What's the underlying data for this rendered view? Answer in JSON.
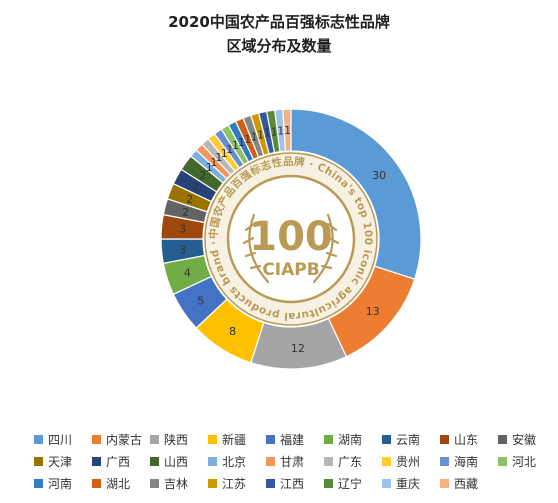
{
  "chart_data": {
    "type": "pie",
    "title_line1": "2020中国农产品百强标志性品牌",
    "title_line2": "区域分布及数量",
    "categories": [
      "四川",
      "内蒙古",
      "陕西",
      "新疆",
      "福建",
      "湖南",
      "云南",
      "山东",
      "安徽",
      "天津",
      "广西",
      "山西",
      "北京",
      "甘肃",
      "广东",
      "贵州",
      "海南",
      "河北",
      "河南",
      "湖北",
      "吉林",
      "江苏",
      "江西",
      "辽宁",
      "重庆",
      "西藏"
    ],
    "values": [
      30,
      13,
      12,
      8,
      5,
      4,
      3,
      3,
      2,
      2,
      2,
      2,
      1,
      1,
      1,
      1,
      1,
      1,
      1,
      1,
      1,
      1,
      1,
      1,
      1,
      1
    ],
    "colors": [
      "#5b9bd5",
      "#ed7d31",
      "#a5a5a5",
      "#ffc000",
      "#4472c4",
      "#70ad47",
      "#255e91",
      "#9e480e",
      "#636363",
      "#997300",
      "#264478",
      "#43682b",
      "#7cafdd",
      "#f1975a",
      "#b7b7b7",
      "#ffcd33",
      "#698ed0",
      "#8cc168",
      "#327dc2",
      "#d26012",
      "#848484",
      "#cc9a00",
      "#335aa1",
      "#5a8a39",
      "#9dc3e6",
      "#f4b183"
    ],
    "legend_position": "bottom"
  },
  "badge": {
    "center_number": "100",
    "center_code": "CIAPB",
    "ring_text": "中国农产品百强标志性品牌 · China's top 100 iconic agricultural products brand ·",
    "colors": {
      "gold": "#b99a55",
      "ring_bg": "#f7f1e4"
    }
  }
}
